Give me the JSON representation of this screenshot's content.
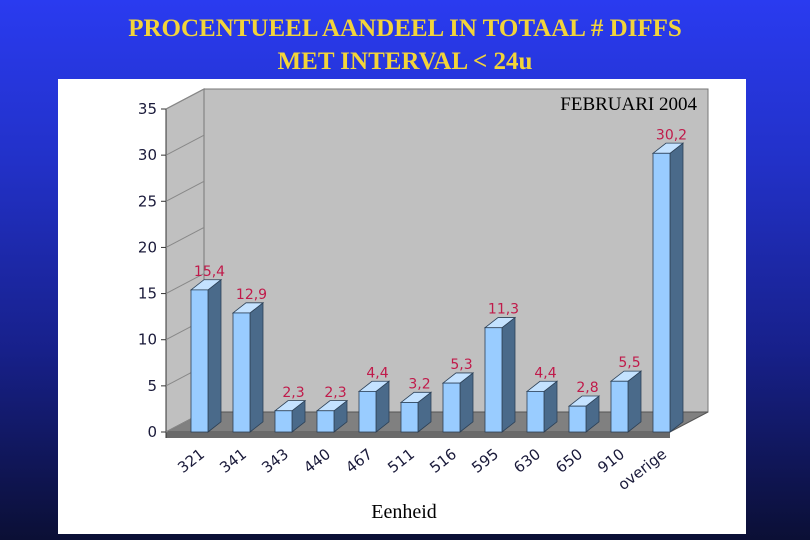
{
  "title": {
    "line1": "PROCENTUEEL AANDEEL IN TOTAAL # DIFFS",
    "line2": "MET INTERVAL < 24u"
  },
  "colors": {
    "title": "#f2d43a",
    "bar_front": "#99ccff",
    "bar_side": "#4a6a8a",
    "bar_top": "#c4e2ff",
    "wall": "#c0c0c0",
    "floor": "#808080",
    "data_label": "#c01a4a"
  },
  "chart_data": {
    "type": "bar",
    "subtitle": "FEBRUARI 2004",
    "xlabel": "Eenheid",
    "ylabel": "",
    "ylim": [
      0,
      35
    ],
    "yticks": [
      0,
      5,
      10,
      15,
      20,
      25,
      30,
      35
    ],
    "grid": false,
    "legend": "none",
    "categories": [
      "321",
      "341",
      "343",
      "440",
      "467",
      "511",
      "516",
      "595",
      "630",
      "650",
      "910",
      "overige"
    ],
    "values": [
      15.4,
      12.9,
      2.3,
      2.3,
      4.4,
      3.2,
      5.3,
      11.3,
      4.4,
      2.8,
      5.5,
      30.2
    ],
    "value_labels": [
      "15,4",
      "12,9",
      "2,3",
      "2,3",
      "4,4",
      "3,2",
      "5,3",
      "11,3",
      "4,4",
      "2,8",
      "5,5",
      "30,2"
    ]
  }
}
